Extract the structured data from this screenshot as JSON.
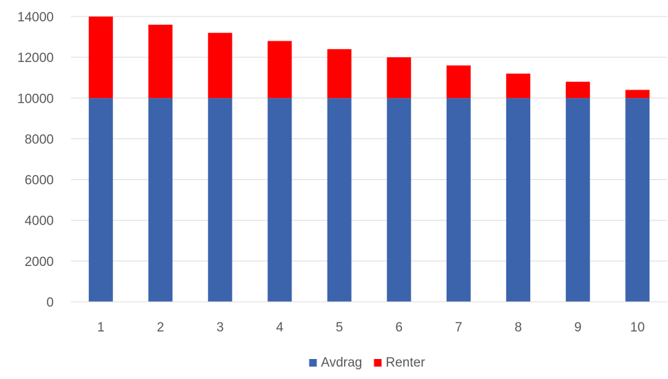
{
  "chart_data": {
    "type": "bar",
    "stacked": true,
    "title": "",
    "xlabel": "",
    "ylabel": "",
    "categories": [
      "1",
      "2",
      "3",
      "4",
      "5",
      "6",
      "7",
      "8",
      "9",
      "10"
    ],
    "series": [
      {
        "name": "Avdrag",
        "color": "#3b64ad",
        "values": [
          10000,
          10000,
          10000,
          10000,
          10000,
          10000,
          10000,
          10000,
          10000,
          10000
        ]
      },
      {
        "name": "Renter",
        "color": "#ff0000",
        "values": [
          4000,
          3600,
          3200,
          2800,
          2400,
          2000,
          1600,
          1200,
          800,
          400
        ]
      }
    ],
    "ylim": [
      0,
      14000
    ],
    "yticks": [
      "0",
      "2000",
      "4000",
      "6000",
      "8000",
      "10000",
      "12000",
      "14000"
    ],
    "grid": true,
    "legend": "bottom-center"
  }
}
